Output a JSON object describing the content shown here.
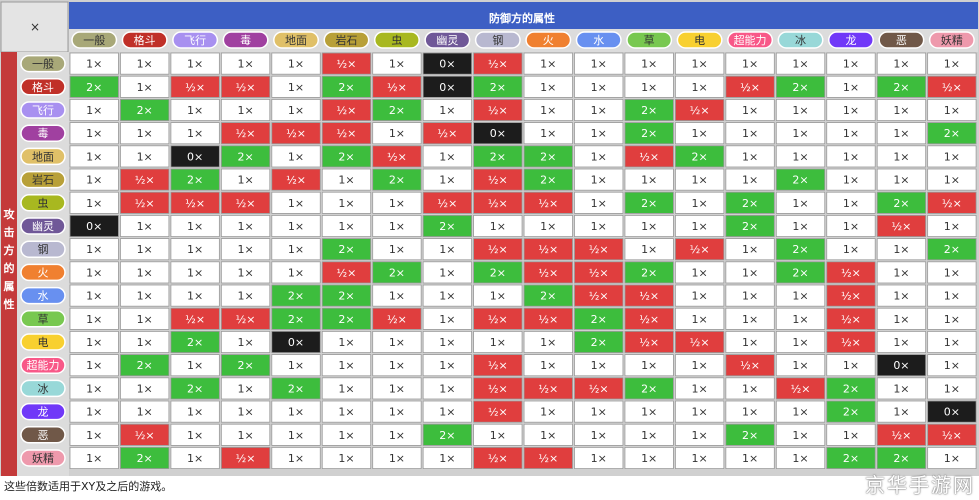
{
  "title": "防御方的属性",
  "side_label": "攻击方的属性",
  "corner_label": "×",
  "caption": "这些倍数适用于XY及之后的游戏。",
  "watermark": "京华手游网",
  "colors": {
    "header_blue": "#3d5fc4",
    "side_red": "#c43a3a",
    "super": "#3dbd3d",
    "notvery": "#e03e3e",
    "immune": "#1c1c1c",
    "normal": "#ffffff",
    "border": "#9a9a9a"
  },
  "chart_data": {
    "type": "table",
    "types": [
      {
        "name": "一般",
        "color": "#a8a878"
      },
      {
        "name": "格斗",
        "color": "#c03028"
      },
      {
        "name": "飞行",
        "color": "#a890f0"
      },
      {
        "name": "毒",
        "color": "#a040a0"
      },
      {
        "name": "地面",
        "color": "#e0c068"
      },
      {
        "name": "岩石",
        "color": "#b8a038"
      },
      {
        "name": "虫",
        "color": "#a8b820"
      },
      {
        "name": "幽灵",
        "color": "#705898"
      },
      {
        "name": "钢",
        "color": "#b8b8d0"
      },
      {
        "name": "火",
        "color": "#f08030"
      },
      {
        "name": "水",
        "color": "#6890f0"
      },
      {
        "name": "草",
        "color": "#78c850"
      },
      {
        "name": "电",
        "color": "#f8d030"
      },
      {
        "name": "超能力",
        "color": "#f85888"
      },
      {
        "name": "冰",
        "color": "#98d8d8"
      },
      {
        "name": "龙",
        "color": "#7038f8"
      },
      {
        "name": "恶",
        "color": "#705848"
      },
      {
        "name": "妖精",
        "color": "#ee99ac"
      }
    ],
    "legend": {
      "2": "2×",
      "1": "1×",
      "0.5": "½×",
      "0": "0×"
    },
    "matrix": [
      [
        1,
        1,
        1,
        1,
        1,
        0.5,
        1,
        0,
        0.5,
        1,
        1,
        1,
        1,
        1,
        1,
        1,
        1,
        1
      ],
      [
        2,
        1,
        0.5,
        0.5,
        1,
        2,
        0.5,
        0,
        2,
        1,
        1,
        1,
        1,
        0.5,
        2,
        1,
        2,
        0.5
      ],
      [
        1,
        2,
        1,
        1,
        1,
        0.5,
        2,
        1,
        0.5,
        1,
        1,
        2,
        0.5,
        1,
        1,
        1,
        1,
        1
      ],
      [
        1,
        1,
        1,
        0.5,
        0.5,
        0.5,
        1,
        0.5,
        0,
        1,
        1,
        2,
        1,
        1,
        1,
        1,
        1,
        2
      ],
      [
        1,
        1,
        0,
        2,
        1,
        2,
        0.5,
        1,
        2,
        2,
        1,
        0.5,
        2,
        1,
        1,
        1,
        1,
        1
      ],
      [
        1,
        0.5,
        2,
        1,
        0.5,
        1,
        2,
        1,
        0.5,
        2,
        1,
        1,
        1,
        1,
        2,
        1,
        1,
        1
      ],
      [
        1,
        0.5,
        0.5,
        0.5,
        1,
        1,
        1,
        0.5,
        0.5,
        0.5,
        1,
        2,
        1,
        2,
        1,
        1,
        2,
        0.5
      ],
      [
        0,
        1,
        1,
        1,
        1,
        1,
        1,
        2,
        1,
        1,
        1,
        1,
        1,
        2,
        1,
        1,
        0.5,
        1
      ],
      [
        1,
        1,
        1,
        1,
        1,
        2,
        1,
        1,
        0.5,
        0.5,
        0.5,
        1,
        0.5,
        1,
        2,
        1,
        1,
        2
      ],
      [
        1,
        1,
        1,
        1,
        1,
        0.5,
        2,
        1,
        2,
        0.5,
        0.5,
        2,
        1,
        1,
        2,
        0.5,
        1,
        1
      ],
      [
        1,
        1,
        1,
        1,
        2,
        2,
        1,
        1,
        1,
        2,
        0.5,
        0.5,
        1,
        1,
        1,
        0.5,
        1,
        1
      ],
      [
        1,
        1,
        0.5,
        0.5,
        2,
        2,
        0.5,
        1,
        0.5,
        0.5,
        2,
        0.5,
        1,
        1,
        1,
        0.5,
        1,
        1
      ],
      [
        1,
        1,
        2,
        1,
        0,
        1,
        1,
        1,
        1,
        1,
        2,
        0.5,
        0.5,
        1,
        1,
        0.5,
        1,
        1
      ],
      [
        1,
        2,
        1,
        2,
        1,
        1,
        1,
        1,
        0.5,
        1,
        1,
        1,
        1,
        0.5,
        1,
        1,
        0,
        1
      ],
      [
        1,
        1,
        2,
        1,
        2,
        1,
        1,
        1,
        0.5,
        0.5,
        0.5,
        2,
        1,
        1,
        0.5,
        2,
        1,
        1
      ],
      [
        1,
        1,
        1,
        1,
        1,
        1,
        1,
        1,
        0.5,
        1,
        1,
        1,
        1,
        1,
        1,
        2,
        1,
        0
      ],
      [
        1,
        0.5,
        1,
        1,
        1,
        1,
        1,
        2,
        1,
        1,
        1,
        1,
        1,
        2,
        1,
        1,
        0.5,
        0.5
      ],
      [
        1,
        2,
        1,
        0.5,
        1,
        1,
        1,
        1,
        0.5,
        0.5,
        1,
        1,
        1,
        1,
        1,
        2,
        2,
        1
      ]
    ]
  }
}
